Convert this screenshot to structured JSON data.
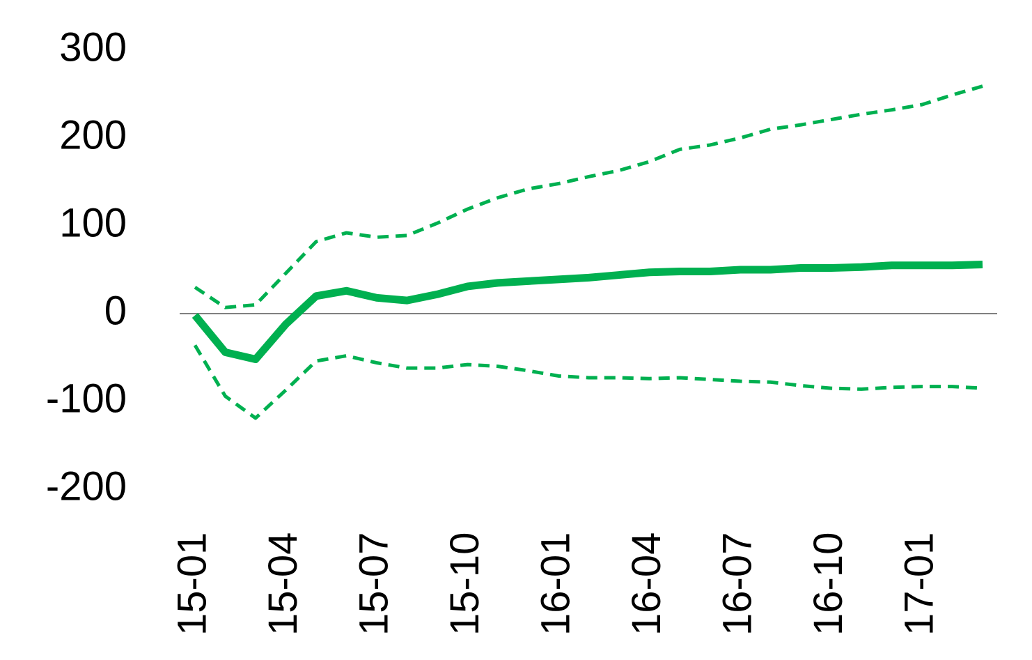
{
  "chart_data": {
    "type": "line",
    "categories": [
      "15-01",
      null,
      null,
      "15-04",
      null,
      null,
      "15-07",
      null,
      null,
      "15-10",
      null,
      null,
      "16-01",
      null,
      null,
      "16-04",
      null,
      null,
      "16-07",
      null,
      null,
      "16-10",
      null,
      null,
      "17-01",
      null,
      null
    ],
    "series": [
      {
        "color": "#00b050",
        "dashed": false,
        "values": [
          -2,
          -44,
          -52,
          -12,
          20,
          26,
          18,
          15,
          22,
          31,
          35,
          37,
          39,
          41,
          44,
          47,
          48,
          48,
          50,
          50,
          52,
          52,
          53,
          55,
          55,
          55,
          56
        ]
      },
      {
        "color": "#00b050",
        "dashed": true,
        "values": [
          30,
          7,
          10,
          46,
          82,
          92,
          87,
          89,
          103,
          119,
          132,
          142,
          148,
          156,
          163,
          173,
          187,
          192,
          200,
          210,
          215,
          221,
          227,
          232,
          238,
          249,
          259
        ]
      },
      {
        "color": "#00b050",
        "dashed": true,
        "values": [
          -36,
          -94,
          -119,
          -87,
          -54,
          -48,
          -56,
          -62,
          -62,
          -58,
          -60,
          -65,
          -71,
          -73,
          -73,
          -74,
          -73,
          -75,
          -77,
          -78,
          -82,
          -85,
          -86,
          -84,
          -83,
          -83,
          -85
        ]
      }
    ],
    "ylim": [
      -200,
      300
    ],
    "yticks": [
      -200,
      -100,
      0,
      100,
      200,
      300
    ],
    "grid": false,
    "zero_line": true
  }
}
